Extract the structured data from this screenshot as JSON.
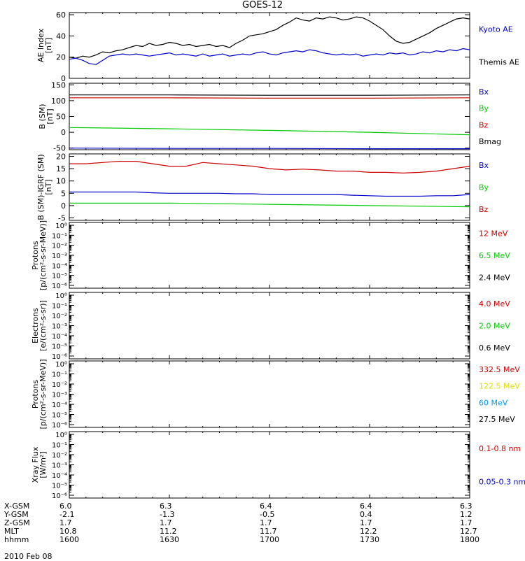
{
  "title": "GOES-12",
  "panels": [
    {
      "ylabel": [
        "AE Index",
        "[nT]"
      ],
      "yticks": [
        "0",
        "20",
        "40",
        "60"
      ],
      "ytick_values": [
        0,
        20,
        40,
        60
      ],
      "ylim": [
        0,
        62
      ],
      "legend": [
        {
          "text": "Kyoto AE",
          "color": "#0000cc"
        },
        {
          "text": "Themis AE",
          "color": "#000000"
        }
      ]
    },
    {
      "ylabel": [
        "B (SM)",
        "[nT]"
      ],
      "yticks": [
        "-50",
        "0",
        "50",
        "100",
        "150"
      ],
      "ytick_values": [
        -50,
        0,
        50,
        100,
        150
      ],
      "ylim": [
        -55,
        155
      ],
      "legend": [
        {
          "text": "Bx",
          "color": "#0000cc"
        },
        {
          "text": "By",
          "color": "#00cc00"
        },
        {
          "text": "Bz",
          "color": "#cc0000"
        },
        {
          "text": "Bmag",
          "color": "#000000"
        }
      ]
    },
    {
      "ylabel": [
        "B (SM)-IGRF (SM)",
        "[nT]"
      ],
      "yticks": [
        "-5",
        "0",
        "5",
        "10",
        "15",
        "20"
      ],
      "ytick_values": [
        -5,
        0,
        5,
        10,
        15,
        20
      ],
      "ylim": [
        -6,
        21
      ],
      "legend": [
        {
          "text": "Bx",
          "color": "#0000cc"
        },
        {
          "text": "By",
          "color": "#00cc00"
        },
        {
          "text": "Bz",
          "color": "#cc0000"
        }
      ]
    },
    {
      "ylabel": [
        "Protons",
        "[p/(cm²-s-sr-MeV)]"
      ],
      "yticks": [
        "10⁰",
        "10⁻¹",
        "10⁻²",
        "10⁻³",
        "10⁻⁴",
        "10⁻⁵",
        "10⁻⁶"
      ],
      "log": true,
      "legend": [
        {
          "text": "12 MeV",
          "color": "#cc0000"
        },
        {
          "text": "6.5 MeV",
          "color": "#00cc00"
        },
        {
          "text": "2.4 MeV",
          "color": "#000000"
        }
      ]
    },
    {
      "ylabel": [
        "Electrons",
        "[e/(cm²-s-sr)]"
      ],
      "yticks": [
        "10⁰",
        "10⁻¹",
        "10⁻²",
        "10⁻³",
        "10⁻⁴",
        "10⁻⁵",
        "10⁻⁶"
      ],
      "log": true,
      "legend": [
        {
          "text": "4.0 MeV",
          "color": "#cc0000"
        },
        {
          "text": "2.0 MeV",
          "color": "#00cc00"
        },
        {
          "text": "0.6 MeV",
          "color": "#000000"
        }
      ]
    },
    {
      "ylabel": [
        "Protons",
        "[p/(cm²-s-sr-MeV)]"
      ],
      "yticks": [
        "10⁰",
        "10⁻¹",
        "10⁻²",
        "10⁻³",
        "10⁻⁴",
        "10⁻⁵",
        "10⁻⁶"
      ],
      "log": true,
      "legend": [
        {
          "text": "332.5 MeV",
          "color": "#cc0000"
        },
        {
          "text": "122.5 MeV",
          "color": "#dddd00"
        },
        {
          "text": "60 MeV",
          "color": "#0099ee"
        },
        {
          "text": "27.5 MeV",
          "color": "#000000"
        }
      ]
    },
    {
      "ylabel": [
        "Xray Flux",
        "[W/m²]"
      ],
      "yticks": [
        "10⁰",
        "10⁻¹",
        "10⁻²",
        "10⁻³",
        "10⁻⁴",
        "10⁻⁵",
        "10⁻⁶"
      ],
      "log": true,
      "legend": [
        {
          "text": "0.1-0.8 nm",
          "color": "#cc0000"
        },
        {
          "text": "0.05-0.3 nm",
          "color": "#0000cc"
        }
      ]
    }
  ],
  "footer": {
    "rows": [
      {
        "label": "X-GSM",
        "values": [
          "6.0",
          "6.3",
          "6.4",
          "6.4",
          "6.3"
        ]
      },
      {
        "label": "Y-GSM",
        "values": [
          "-2.1",
          "-1.3",
          "-0.5",
          "0.4",
          "1.2"
        ]
      },
      {
        "label": "Z-GSM",
        "values": [
          "1.7",
          "1.7",
          "1.7",
          "1.7",
          "1.7"
        ]
      },
      {
        "label": "MLT",
        "values": [
          "10.8",
          "11.2",
          "11.7",
          "12.2",
          "12.7"
        ]
      },
      {
        "label": "hhmm",
        "values": [
          "1600",
          "1630",
          "1700",
          "1730",
          "1800"
        ]
      }
    ],
    "date": "2010 Feb 08"
  },
  "chart_data": {
    "type": "line",
    "title": "GOES-12",
    "x_hhmm": [
      1600,
      1630,
      1700,
      1730,
      1800
    ],
    "panels": [
      {
        "name": "AE Index",
        "series": [
          {
            "name": "Themis AE",
            "color": "#000000",
            "x": [
              0,
              2,
              4,
              6,
              8,
              10,
              12,
              14,
              16,
              18,
              20,
              22,
              24,
              26,
              28,
              30,
              32,
              34,
              36,
              38,
              40,
              42,
              44,
              46,
              48,
              50,
              52,
              54,
              56,
              58,
              60,
              62,
              64,
              66,
              68,
              70,
              72,
              74,
              76,
              78,
              80,
              82,
              84,
              86,
              88,
              90,
              92,
              94,
              96,
              98,
              100,
              102,
              104,
              106,
              108,
              110,
              112,
              114,
              116,
              118,
              120
            ],
            "values": [
              20,
              19,
              21,
              20,
              22,
              25,
              24,
              26,
              27,
              29,
              31,
              30,
              33,
              31,
              32,
              34,
              33,
              31,
              32,
              30,
              31,
              32,
              30,
              31,
              29,
              33,
              36,
              40,
              41,
              42,
              44,
              46,
              50,
              53,
              57,
              55,
              54,
              57,
              56,
              58,
              57,
              55,
              56,
              58,
              57,
              54,
              50,
              46,
              40,
              35,
              33,
              34,
              37,
              40,
              43,
              47,
              50,
              53,
              56,
              57,
              56
            ]
          },
          {
            "name": "Kyoto AE",
            "color": "#0000cc",
            "x": [
              0,
              2,
              4,
              6,
              8,
              10,
              12,
              14,
              16,
              18,
              20,
              22,
              24,
              26,
              28,
              30,
              32,
              34,
              36,
              38,
              40,
              42,
              44,
              46,
              48,
              50,
              52,
              54,
              56,
              58,
              60,
              62,
              64,
              66,
              68,
              70,
              72,
              74,
              76,
              78,
              80,
              82,
              84,
              86,
              88,
              90,
              92,
              94,
              96,
              98,
              100,
              102,
              104,
              106,
              108,
              110,
              112,
              114,
              116,
              118,
              120
            ],
            "values": [
              18,
              19,
              17,
              14,
              13,
              17,
              21,
              22,
              23,
              22,
              23,
              22,
              21,
              22,
              23,
              24,
              22,
              23,
              22,
              21,
              23,
              21,
              22,
              23,
              21,
              22,
              23,
              22,
              24,
              25,
              23,
              22,
              24,
              25,
              26,
              25,
              27,
              26,
              24,
              23,
              22,
              23,
              22,
              23,
              21,
              22,
              23,
              22,
              24,
              23,
              24,
              22,
              23,
              25,
              24,
              26,
              25,
              27,
              26,
              28,
              27
            ]
          }
        ]
      },
      {
        "name": "B (SM)",
        "series": [
          {
            "name": "Bmag",
            "color": "#000000",
            "x": [
              0,
              30,
              60,
              90,
              120
            ],
            "values": [
              118,
              118,
              117,
              117,
              118
            ]
          },
          {
            "name": "Bz",
            "color": "#cc0000",
            "x": [
              0,
              30,
              60,
              90,
              120
            ],
            "values": [
              109,
              109,
              108,
              108,
              109
            ]
          },
          {
            "name": "By",
            "color": "#00cc00",
            "x": [
              0,
              30,
              60,
              90,
              120
            ],
            "values": [
              15,
              11,
              6,
              0,
              -8
            ]
          },
          {
            "name": "Bx",
            "color": "#0000cc",
            "x": [
              0,
              30,
              60,
              90,
              120
            ],
            "values": [
              -50,
              -51,
              -51,
              -52,
              -52
            ]
          }
        ]
      },
      {
        "name": "B (SM)-IGRF (SM)",
        "series": [
          {
            "name": "Bz",
            "color": "#cc0000",
            "x": [
              0,
              5,
              10,
              15,
              20,
              25,
              30,
              35,
              40,
              45,
              50,
              55,
              60,
              65,
              70,
              75,
              80,
              85,
              90,
              95,
              100,
              105,
              110,
              115,
              120
            ],
            "values": [
              17,
              17,
              17.5,
              18,
              18,
              17,
              16,
              16,
              17.5,
              17,
              16.5,
              16,
              15,
              14.5,
              14.8,
              14.5,
              14,
              14,
              13.5,
              13.5,
              13.2,
              13.5,
              14,
              15,
              16
            ]
          },
          {
            "name": "Bx",
            "color": "#0000cc",
            "x": [
              0,
              5,
              10,
              15,
              20,
              25,
              30,
              35,
              40,
              45,
              50,
              55,
              60,
              65,
              70,
              75,
              80,
              85,
              90,
              95,
              100,
              105,
              110,
              115,
              120
            ],
            "values": [
              5.5,
              5.5,
              5.5,
              5.5,
              5.5,
              5.2,
              5,
              5,
              5,
              5,
              4.8,
              4.8,
              4.5,
              4.5,
              4.5,
              4.5,
              4.5,
              4.2,
              4,
              3.8,
              3.8,
              3.8,
              4,
              4,
              4.5
            ]
          },
          {
            "name": "By",
            "color": "#00cc00",
            "x": [
              0,
              30,
              60,
              90,
              120
            ],
            "values": [
              1,
              1,
              0.5,
              0,
              -0.5
            ]
          }
        ]
      }
    ]
  }
}
